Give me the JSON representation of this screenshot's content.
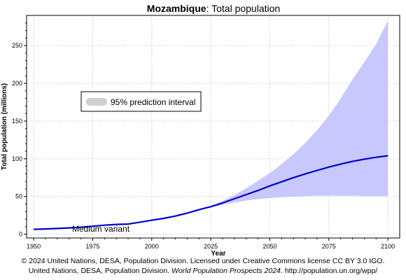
{
  "chart_data": {
    "type": "line",
    "title_country": "Mozambique",
    "title_rest": ": Total population",
    "xlabel": "Year",
    "ylabel": "Total population (millions)",
    "xlim": [
      1947,
      2105
    ],
    "ylim": [
      -5,
      290
    ],
    "x_ticks": [
      1950,
      1975,
      2000,
      2025,
      2050,
      2075,
      2100
    ],
    "y_ticks": [
      0,
      50,
      100,
      150,
      200,
      250
    ],
    "grid": true,
    "legend": {
      "label": "95% prediction interval",
      "position": "upper-left"
    },
    "annotation": "Medium variant",
    "colors": {
      "line": "#0000cc",
      "interval": "#c8c8ff",
      "legend_swatch": "#d0d0d0",
      "grid": "#bdbdbd"
    },
    "series": [
      {
        "name": "Medium variant",
        "x": [
          1950,
          1955,
          1960,
          1965,
          1970,
          1975,
          1980,
          1985,
          1990,
          1995,
          2000,
          2005,
          2010,
          2015,
          2020,
          2023,
          2025,
          2030,
          2035,
          2040,
          2045,
          2050,
          2055,
          2060,
          2065,
          2070,
          2075,
          2080,
          2085,
          2090,
          2095,
          2100
        ],
        "y": [
          6.5,
          7.0,
          7.6,
          8.4,
          9.3,
          10.6,
          12.0,
          13.0,
          13.5,
          16.0,
          18.6,
          21.0,
          24.0,
          28.0,
          32.5,
          35.0,
          36.5,
          41.5,
          47.0,
          52.5,
          58.0,
          64.0,
          69.5,
          75.0,
          80.0,
          84.5,
          89.0,
          93.0,
          96.5,
          99.5,
          102.0,
          104.0
        ]
      }
    ],
    "interval": {
      "name": "95% prediction interval",
      "x": [
        2023,
        2030,
        2035,
        2040,
        2045,
        2050,
        2055,
        2060,
        2065,
        2070,
        2075,
        2080,
        2085,
        2090,
        2095,
        2100
      ],
      "lower": [
        35.0,
        39.0,
        42.0,
        44.5,
        46.5,
        48.0,
        49.0,
        50.0,
        50.5,
        51.0,
        51.0,
        51.0,
        51.0,
        50.5,
        50.5,
        50.5
      ],
      "upper": [
        35.0,
        44.0,
        52.0,
        61.0,
        71.0,
        81.0,
        93.0,
        106.0,
        121.0,
        138.0,
        157.0,
        180.0,
        205.0,
        228.0,
        252.0,
        283.0
      ]
    }
  },
  "footer": {
    "line1": "© 2024 United Nations, DESA, Population Division. Licensed under Creative Commons license CC BY 3.0 IGO.",
    "line2_prefix": "United Nations, DESA, Population Division. ",
    "line2_italic": "World Population Prospects 2024",
    "line2_suffix": ". http://population.un.org/wpp/"
  }
}
